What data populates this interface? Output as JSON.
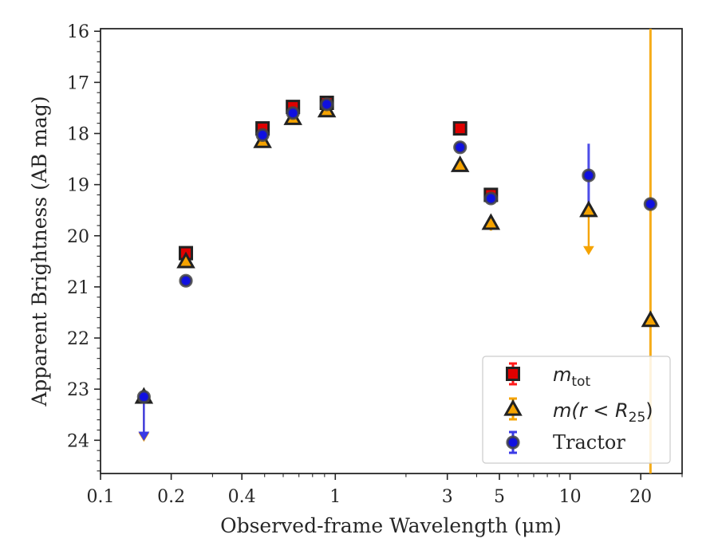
{
  "chart_data": {
    "type": "scatter",
    "xlabel": "Observed-frame Wavelength (μm)",
    "ylabel": "Apparent Brightness (AB mag)",
    "xscale": "log",
    "xlim": [
      0.1,
      30
    ],
    "ylim": [
      24.65,
      15.95
    ],
    "y_inverted": true,
    "grid": false,
    "legend_position": "lower-right",
    "x_ticks": [
      {
        "value": 0.1,
        "label": "0.1"
      },
      {
        "value": 0.2,
        "label": "0.2"
      },
      {
        "value": 0.4,
        "label": "0.4"
      },
      {
        "value": 1,
        "label": "1"
      },
      {
        "value": 3,
        "label": "3"
      },
      {
        "value": 5,
        "label": "5"
      },
      {
        "value": 10,
        "label": "10"
      },
      {
        "value": 20,
        "label": "20"
      }
    ],
    "y_ticks": [
      16,
      17,
      18,
      19,
      20,
      21,
      22,
      23,
      24
    ],
    "series": [
      {
        "name": "m_tot",
        "marker": "square",
        "color": "#e00000",
        "edge_color": "#222222",
        "points": [
          {
            "x": 0.231,
            "y": 20.34
          },
          {
            "x": 0.49,
            "y": 17.9
          },
          {
            "x": 0.66,
            "y": 17.48
          },
          {
            "x": 0.92,
            "y": 17.4
          },
          {
            "x": 3.4,
            "y": 17.9
          },
          {
            "x": 4.6,
            "y": 19.2
          }
        ]
      },
      {
        "name": "m(r < R25)",
        "marker": "triangle",
        "color": "#f5a300",
        "edge_color": "#222222",
        "points": [
          {
            "x": 0.153,
            "y": 23.15,
            "upper_limit": true,
            "arrow_to": 24.0
          },
          {
            "x": 0.231,
            "y": 20.5
          },
          {
            "x": 0.49,
            "y": 18.15
          },
          {
            "x": 0.66,
            "y": 17.7
          },
          {
            "x": 0.92,
            "y": 17.55
          },
          {
            "x": 3.4,
            "y": 18.62
          },
          {
            "x": 4.6,
            "y": 19.75,
            "err": 0.15
          },
          {
            "x": 12.0,
            "y": 19.5,
            "upper_limit": true,
            "arrow_to": 20.35
          },
          {
            "x": 22.0,
            "y": 21.65,
            "err": 12
          }
        ]
      },
      {
        "name": "Tractor",
        "marker": "circle",
        "color": "#1010e0",
        "edge_color": "#444444",
        "points": [
          {
            "x": 0.153,
            "y": 23.15,
            "upper_limit": true,
            "arrow_to": 23.98
          },
          {
            "x": 0.231,
            "y": 20.88
          },
          {
            "x": 0.49,
            "y": 18.03
          },
          {
            "x": 0.66,
            "y": 17.6
          },
          {
            "x": 0.92,
            "y": 17.43
          },
          {
            "x": 3.4,
            "y": 18.27
          },
          {
            "x": 4.6,
            "y": 19.27
          },
          {
            "x": 12.0,
            "y": 18.82,
            "err": 0.62
          },
          {
            "x": 22.0,
            "y": 19.38
          }
        ]
      }
    ]
  },
  "legend": {
    "items": [
      {
        "key": "m_tot",
        "math": "m",
        "sub": "tot",
        "text": ""
      },
      {
        "key": "m_r25",
        "math": "m(r < R",
        "sub": "25",
        "tail": ")",
        "text": ""
      },
      {
        "key": "tractor",
        "math": "",
        "sub": "",
        "text": "Tractor"
      }
    ]
  }
}
